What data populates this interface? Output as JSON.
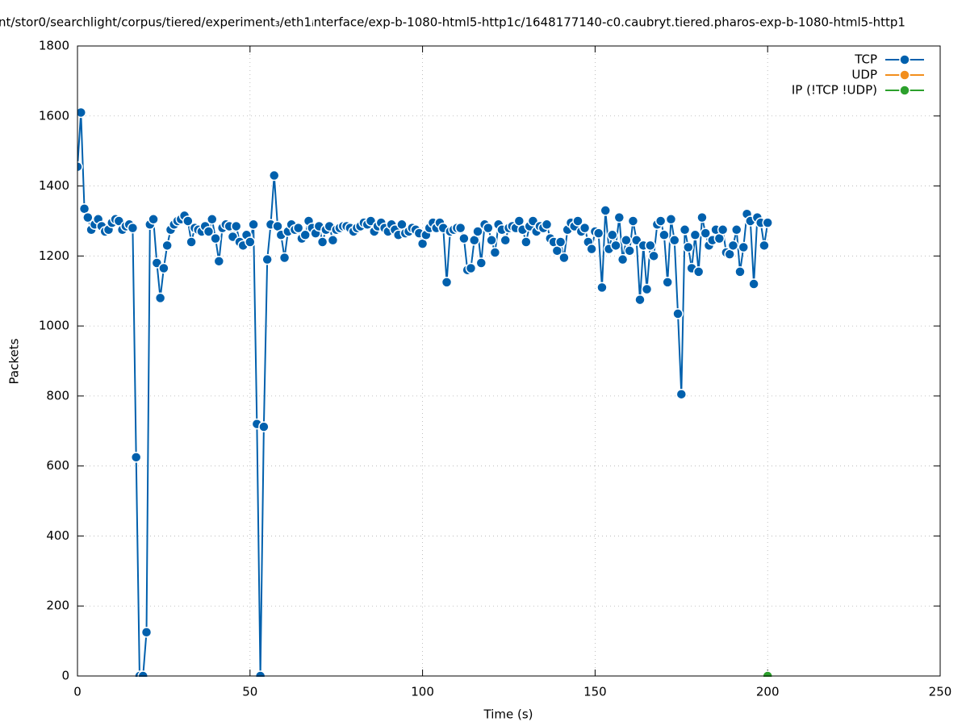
{
  "chart_data": {
    "type": "line",
    "title": "nt/stor0/searchlight/corpus/tiered/experiment₃/eth1ᵢnterface/exp-b-1080-html5-http1c/1648177140-c0.caubryt.tiered.pharos-exp-b-1080-html5-http1",
    "x_label": "Time (s)",
    "y_label": "Packets",
    "xlim": [
      0,
      250
    ],
    "xticks": [
      0,
      50,
      100,
      150,
      200,
      250
    ],
    "ylim": [
      0,
      1800
    ],
    "yticks": [
      0,
      200,
      400,
      600,
      800,
      1000,
      1200,
      1400,
      1600,
      1800
    ],
    "grid": true,
    "legend": "top-right",
    "series": [
      {
        "name": "TCP",
        "color": "#0060ad",
        "x": [
          0,
          1,
          2,
          3,
          4,
          5,
          6,
          7,
          8,
          9,
          10,
          11,
          12,
          13,
          14,
          15,
          16,
          17,
          18,
          19,
          20,
          21,
          22,
          23,
          24,
          25,
          26,
          27,
          28,
          29,
          30,
          31,
          32,
          33,
          34,
          35,
          36,
          37,
          38,
          39,
          40,
          41,
          42,
          43,
          44,
          45,
          46,
          47,
          48,
          49,
          50,
          51,
          52,
          53,
          54,
          55,
          56,
          57,
          58,
          59,
          60,
          61,
          62,
          63,
          64,
          65,
          66,
          67,
          68,
          69,
          70,
          71,
          72,
          73,
          74,
          75,
          76,
          77,
          78,
          79,
          80,
          81,
          82,
          83,
          84,
          85,
          86,
          87,
          88,
          89,
          90,
          91,
          92,
          93,
          94,
          95,
          96,
          97,
          98,
          99,
          100,
          101,
          102,
          103,
          104,
          105,
          106,
          107,
          108,
          109,
          110,
          111,
          112,
          113,
          114,
          115,
          116,
          117,
          118,
          119,
          120,
          121,
          122,
          123,
          124,
          125,
          126,
          127,
          128,
          129,
          130,
          131,
          132,
          133,
          134,
          135,
          136,
          137,
          138,
          139,
          140,
          141,
          142,
          143,
          144,
          145,
          146,
          147,
          148,
          149,
          150,
          151,
          152,
          153,
          154,
          155,
          156,
          157,
          158,
          159,
          160,
          161,
          162,
          163,
          164,
          165,
          166,
          167,
          168,
          169,
          170,
          171,
          172,
          173,
          174,
          175,
          176,
          177,
          178,
          179,
          180,
          181,
          182,
          183,
          184,
          185,
          186,
          187,
          188,
          189,
          190,
          191,
          192,
          193,
          194,
          195,
          196,
          197,
          198,
          199,
          200
        ],
        "values": [
          1455,
          1610,
          1335,
          1310,
          1275,
          1290,
          1305,
          1285,
          1270,
          1275,
          1295,
          1305,
          1300,
          1275,
          1285,
          1290,
          1280,
          625,
          0,
          0,
          125,
          1290,
          1305,
          1180,
          1080,
          1165,
          1230,
          1275,
          1290,
          1300,
          1305,
          1315,
          1300,
          1240,
          1280,
          1275,
          1270,
          1285,
          1270,
          1305,
          1250,
          1185,
          1280,
          1290,
          1285,
          1255,
          1285,
          1240,
          1230,
          1260,
          1240,
          1290,
          720,
          0,
          712,
          1190,
          1290,
          1430,
          1285,
          1260,
          1195,
          1270,
          1290,
          1275,
          1280,
          1250,
          1260,
          1300,
          1280,
          1265,
          1285,
          1240,
          1275,
          1285,
          1245,
          1275,
          1280,
          1285,
          1285,
          1280,
          1270,
          1280,
          1285,
          1295,
          1290,
          1300,
          1270,
          1285,
          1295,
          1280,
          1270,
          1290,
          1275,
          1260,
          1290,
          1265,
          1270,
          1280,
          1275,
          1265,
          1235,
          1260,
          1280,
          1295,
          1280,
          1295,
          1280,
          1125,
          1270,
          1275,
          1280,
          1280,
          1250,
          1160,
          1165,
          1245,
          1270,
          1180,
          1290,
          1280,
          1245,
          1210,
          1290,
          1275,
          1245,
          1280,
          1285,
          1280,
          1300,
          1275,
          1240,
          1285,
          1300,
          1270,
          1285,
          1280,
          1290,
          1250,
          1240,
          1215,
          1240,
          1195,
          1275,
          1295,
          1285,
          1300,
          1270,
          1280,
          1240,
          1220,
          1270,
          1265,
          1110,
          1330,
          1220,
          1260,
          1230,
          1310,
          1190,
          1245,
          1215,
          1300,
          1245,
          1075,
          1230,
          1105,
          1230,
          1200,
          1290,
          1300,
          1260,
          1125,
          1305,
          1245,
          1035,
          805,
          1275,
          1225,
          1165,
          1260,
          1155,
          1310,
          1265,
          1230,
          1245,
          1275,
          1250,
          1275,
          1210,
          1205,
          1230,
          1275,
          1155,
          1225,
          1320,
          1300,
          1120,
          1310,
          1295,
          1230,
          1295
        ]
      },
      {
        "name": "UDP",
        "color": "#f28e1c",
        "x": [],
        "values": []
      },
      {
        "name": "IP (!TCP  !UDP)",
        "color": "#2ca02c",
        "x": [
          200
        ],
        "values": [
          0
        ]
      }
    ]
  }
}
